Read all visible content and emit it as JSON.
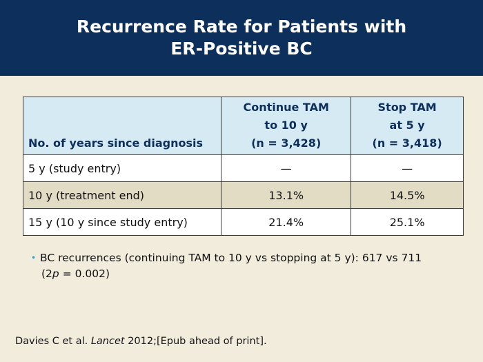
{
  "slide": {
    "title_line1": "Recurrence Rate for Patients with",
    "title_line2": "ER-Positive BC"
  },
  "table": {
    "headers": {
      "col1": "No. of years since diagnosis",
      "col2_line1": "Continue TAM",
      "col2_line2": "to 10 y",
      "col2_line3": "(n = 3,428)",
      "col3_line1": "Stop TAM",
      "col3_line2": "at 5 y",
      "col3_line3": "(n = 3,418)"
    },
    "rows": [
      {
        "label": "5 y (study entry)",
        "continue": "—",
        "stop": "—"
      },
      {
        "label": "10 y (treatment end)",
        "continue": "13.1%",
        "stop": "14.5%"
      },
      {
        "label": "15 y (10 y since study entry)",
        "continue": "21.4%",
        "stop": "25.1%"
      }
    ]
  },
  "bullet": {
    "dot": "•",
    "line1": "BC recurrences (continuing TAM to 10 y vs stopping at 5 y): 617 vs 711",
    "line2_open": "(2",
    "line2_italic": "p",
    "line2_close": " = 0.002)"
  },
  "citation": {
    "authors": "Davies C et al. ",
    "journal": "Lancet",
    "rest": " 2012;[Epub ahead of print]."
  },
  "colors": {
    "title_bar": "#0d2f5c",
    "background": "#f1ecdc",
    "header_fill": "#d6eaf4",
    "shaded_row": "#e2dcc5",
    "bullet_accent": "#2aa2c4"
  }
}
